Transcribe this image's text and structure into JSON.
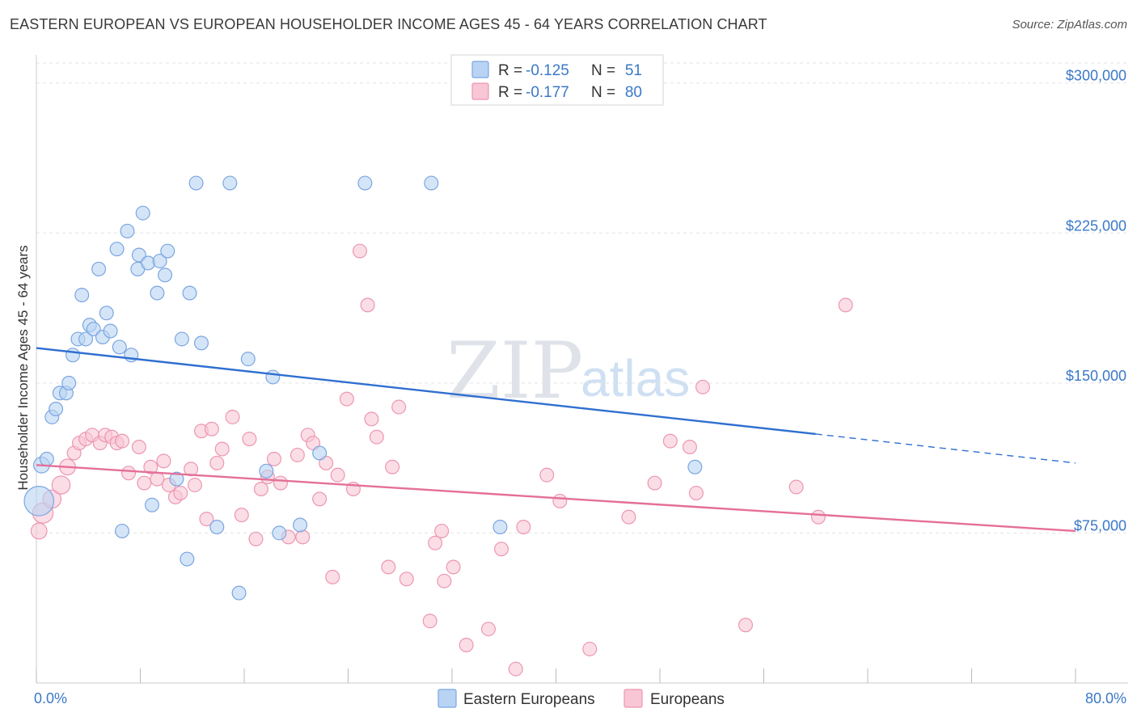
{
  "title": "EASTERN EUROPEAN VS EUROPEAN HOUSEHOLDER INCOME AGES 45 - 64 YEARS CORRELATION CHART",
  "source": "Source: ZipAtlas.com",
  "watermark": {
    "zip": "ZIP",
    "atlas": "atlas"
  },
  "legend": {
    "r_label": "R =",
    "n_label": "N =",
    "rows": [
      {
        "r": "-0.125",
        "n": "51"
      },
      {
        "r": "-0.177",
        "n": "80"
      }
    ]
  },
  "colors": {
    "blue_fill": "#b9d3f4",
    "blue_stroke": "#7aa6e0",
    "blue_line": "#2f6fd0",
    "pink_fill": "#f8c6d5",
    "pink_stroke": "#ec97b1",
    "pink_line": "#e46f98",
    "tick_text": "#3b78c7"
  },
  "chart_data": {
    "type": "scatter",
    "title": "EASTERN EUROPEAN VS EUROPEAN HOUSEHOLDER INCOME AGES 45 - 64 YEARS CORRELATION CHART",
    "xlabel": "",
    "ylabel": "Householder Income Ages 45 - 64 years",
    "xlim": [
      0,
      80
    ],
    "ylim": [
      0,
      310000
    ],
    "x_tick_labels": [
      "0.0%",
      "80.0%"
    ],
    "y_ticks": [
      75000,
      150000,
      225000,
      300000
    ],
    "y_tick_labels": [
      "$75,000",
      "$150,000",
      "$225,000",
      "$300,000"
    ],
    "grid": true,
    "legend_position": "top-center",
    "series": [
      {
        "name": "Eastern Europeans",
        "r": -0.125,
        "n": 51,
        "trend": {
          "x0": 0,
          "y0": 167500,
          "x1": 60,
          "y1": 124500,
          "dash_to_x": 80,
          "dash_to_y": 110000
        },
        "points": [
          [
            0.2,
            91000,
            26
          ],
          [
            0.4,
            109000,
            14
          ],
          [
            0.8,
            112000,
            12
          ],
          [
            1.2,
            133000,
            12
          ],
          [
            1.5,
            137000,
            12
          ],
          [
            1.8,
            145000,
            12
          ],
          [
            2.3,
            145000,
            12
          ],
          [
            2.5,
            150000,
            12
          ],
          [
            2.8,
            164000,
            12
          ],
          [
            3.2,
            172000,
            12
          ],
          [
            3.5,
            194000,
            12
          ],
          [
            3.8,
            172000,
            12
          ],
          [
            4.1,
            179000,
            12
          ],
          [
            4.4,
            177000,
            12
          ],
          [
            4.8,
            207000,
            12
          ],
          [
            5.1,
            173000,
            12
          ],
          [
            5.4,
            185000,
            12
          ],
          [
            5.7,
            176000,
            12
          ],
          [
            6.2,
            217000,
            12
          ],
          [
            6.4,
            168000,
            12
          ],
          [
            6.6,
            76000,
            12
          ],
          [
            7.0,
            226000,
            12
          ],
          [
            7.3,
            164000,
            12
          ],
          [
            7.8,
            207000,
            12
          ],
          [
            7.9,
            214000,
            12
          ],
          [
            8.2,
            235000,
            12
          ],
          [
            8.6,
            210000,
            12
          ],
          [
            8.9,
            89000,
            12
          ],
          [
            9.3,
            195000,
            12
          ],
          [
            9.5,
            211000,
            12
          ],
          [
            9.9,
            204000,
            12
          ],
          [
            10.1,
            216000,
            12
          ],
          [
            10.8,
            102000,
            12
          ],
          [
            11.2,
            172000,
            12
          ],
          [
            11.6,
            62000,
            12
          ],
          [
            11.8,
            195000,
            12
          ],
          [
            12.3,
            250000,
            12
          ],
          [
            12.7,
            170000,
            12
          ],
          [
            13.9,
            78000,
            12
          ],
          [
            14.9,
            250000,
            12
          ],
          [
            15.6,
            45000,
            12
          ],
          [
            16.3,
            162000,
            12
          ],
          [
            17.7,
            106000,
            12
          ],
          [
            18.2,
            153000,
            12
          ],
          [
            18.7,
            75000,
            12
          ],
          [
            20.3,
            79000,
            12
          ],
          [
            21.8,
            115000,
            12
          ],
          [
            25.3,
            250000,
            12
          ],
          [
            30.4,
            250000,
            12
          ],
          [
            35.7,
            78000,
            12
          ],
          [
            50.7,
            108000,
            12
          ]
        ]
      },
      {
        "name": "Europeans",
        "r": -0.177,
        "n": 80,
        "trend": {
          "x0": 0,
          "y0": 109000,
          "x1": 80,
          "y1": 76000
        },
        "points": [
          [
            0.2,
            76000,
            14
          ],
          [
            0.5,
            85000,
            18
          ],
          [
            1.2,
            92000,
            16
          ],
          [
            1.9,
            99000,
            16
          ],
          [
            2.4,
            108000,
            14
          ],
          [
            2.9,
            115000,
            12
          ],
          [
            3.3,
            120000,
            12
          ],
          [
            3.8,
            122000,
            12
          ],
          [
            4.3,
            124000,
            12
          ],
          [
            4.9,
            120000,
            12
          ],
          [
            5.3,
            124000,
            12
          ],
          [
            5.8,
            123000,
            12
          ],
          [
            6.2,
            120000,
            12
          ],
          [
            6.6,
            121000,
            12
          ],
          [
            7.1,
            105000,
            12
          ],
          [
            7.9,
            118000,
            12
          ],
          [
            8.3,
            100000,
            12
          ],
          [
            8.8,
            108000,
            12
          ],
          [
            9.3,
            102000,
            12
          ],
          [
            9.8,
            111000,
            12
          ],
          [
            10.2,
            99000,
            12
          ],
          [
            10.7,
            93000,
            12
          ],
          [
            11.1,
            95000,
            12
          ],
          [
            11.9,
            107000,
            12
          ],
          [
            12.2,
            99000,
            12
          ],
          [
            12.7,
            126000,
            12
          ],
          [
            13.1,
            82000,
            12
          ],
          [
            13.5,
            127000,
            12
          ],
          [
            13.9,
            110000,
            12
          ],
          [
            14.3,
            117000,
            12
          ],
          [
            15.1,
            133000,
            12
          ],
          [
            15.8,
            84000,
            12
          ],
          [
            16.4,
            122000,
            12
          ],
          [
            16.9,
            72000,
            12
          ],
          [
            17.3,
            97000,
            12
          ],
          [
            17.8,
            103000,
            12
          ],
          [
            18.3,
            112000,
            12
          ],
          [
            18.8,
            100000,
            12
          ],
          [
            19.4,
            73000,
            12
          ],
          [
            20.1,
            114000,
            12
          ],
          [
            20.5,
            73000,
            12
          ],
          [
            20.9,
            124000,
            12
          ],
          [
            21.3,
            120000,
            12
          ],
          [
            21.8,
            92000,
            12
          ],
          [
            22.3,
            110000,
            12
          ],
          [
            22.8,
            53000,
            12
          ],
          [
            23.2,
            104000,
            12
          ],
          [
            23.9,
            142000,
            12
          ],
          [
            24.4,
            97000,
            12
          ],
          [
            24.9,
            216000,
            12
          ],
          [
            25.5,
            189000,
            12
          ],
          [
            25.8,
            132000,
            12
          ],
          [
            26.2,
            123000,
            12
          ],
          [
            27.1,
            58000,
            12
          ],
          [
            27.4,
            108000,
            12
          ],
          [
            27.9,
            138000,
            12
          ],
          [
            28.5,
            52000,
            12
          ],
          [
            30.3,
            31000,
            12
          ],
          [
            30.7,
            70000,
            12
          ],
          [
            31.2,
            76000,
            12
          ],
          [
            31.4,
            51000,
            12
          ],
          [
            32.1,
            58000,
            12
          ],
          [
            33.1,
            19000,
            12
          ],
          [
            34.8,
            27000,
            12
          ],
          [
            35.8,
            67000,
            12
          ],
          [
            36.9,
            7000,
            12
          ],
          [
            37.5,
            78000,
            12
          ],
          [
            39.3,
            104000,
            12
          ],
          [
            40.3,
            91000,
            12
          ],
          [
            42.6,
            17000,
            12
          ],
          [
            45.6,
            83000,
            12
          ],
          [
            47.6,
            100000,
            12
          ],
          [
            48.8,
            121000,
            12
          ],
          [
            50.3,
            118000,
            12
          ],
          [
            50.8,
            95000,
            12
          ],
          [
            51.3,
            148000,
            12
          ],
          [
            54.6,
            29000,
            12
          ],
          [
            58.5,
            98000,
            12
          ],
          [
            60.2,
            83000,
            12
          ],
          [
            62.3,
            189000,
            12
          ]
        ]
      }
    ]
  },
  "bottom_legend": [
    "Eastern Europeans",
    "Europeans"
  ]
}
